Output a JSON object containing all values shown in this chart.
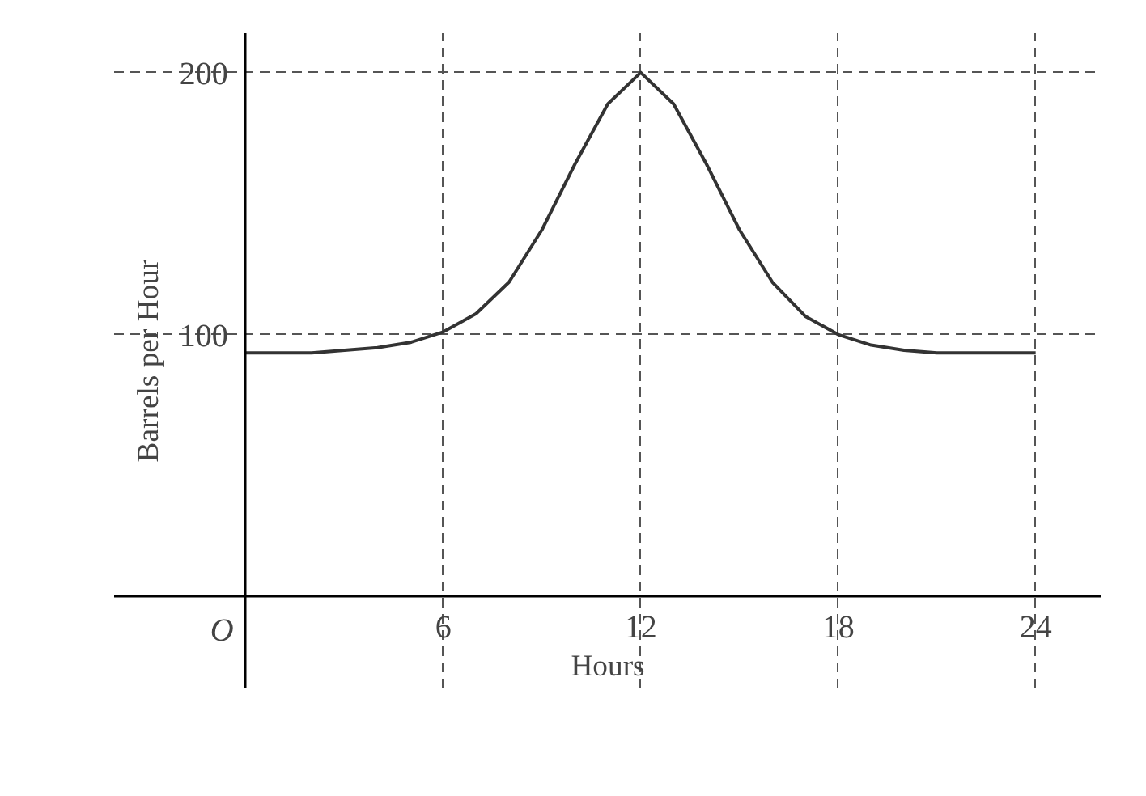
{
  "chart_data": {
    "type": "line",
    "xlabel": "Hours",
    "ylabel": "Barrels per Hour",
    "x": [
      0,
      2,
      3,
      4,
      5,
      6,
      7,
      8,
      9,
      10,
      11,
      12,
      13,
      14,
      15,
      16,
      17,
      18,
      19,
      20,
      21,
      22,
      24
    ],
    "series": [
      {
        "color": "#333333",
        "values": [
          93,
          93,
          94,
          95,
          97,
          101,
          108,
          120,
          140,
          165,
          188,
          200,
          188,
          165,
          140,
          120,
          107,
          100,
          96,
          94,
          93,
          93,
          93
        ]
      }
    ],
    "xlim": [
      -4,
      26
    ],
    "ylim": [
      -35,
      215
    ],
    "xticks": [
      6,
      12,
      18,
      24
    ],
    "yticks": [
      100,
      200
    ],
    "grid": true,
    "line_style": "solid",
    "marker": "none",
    "annotations": [
      "O"
    ]
  }
}
